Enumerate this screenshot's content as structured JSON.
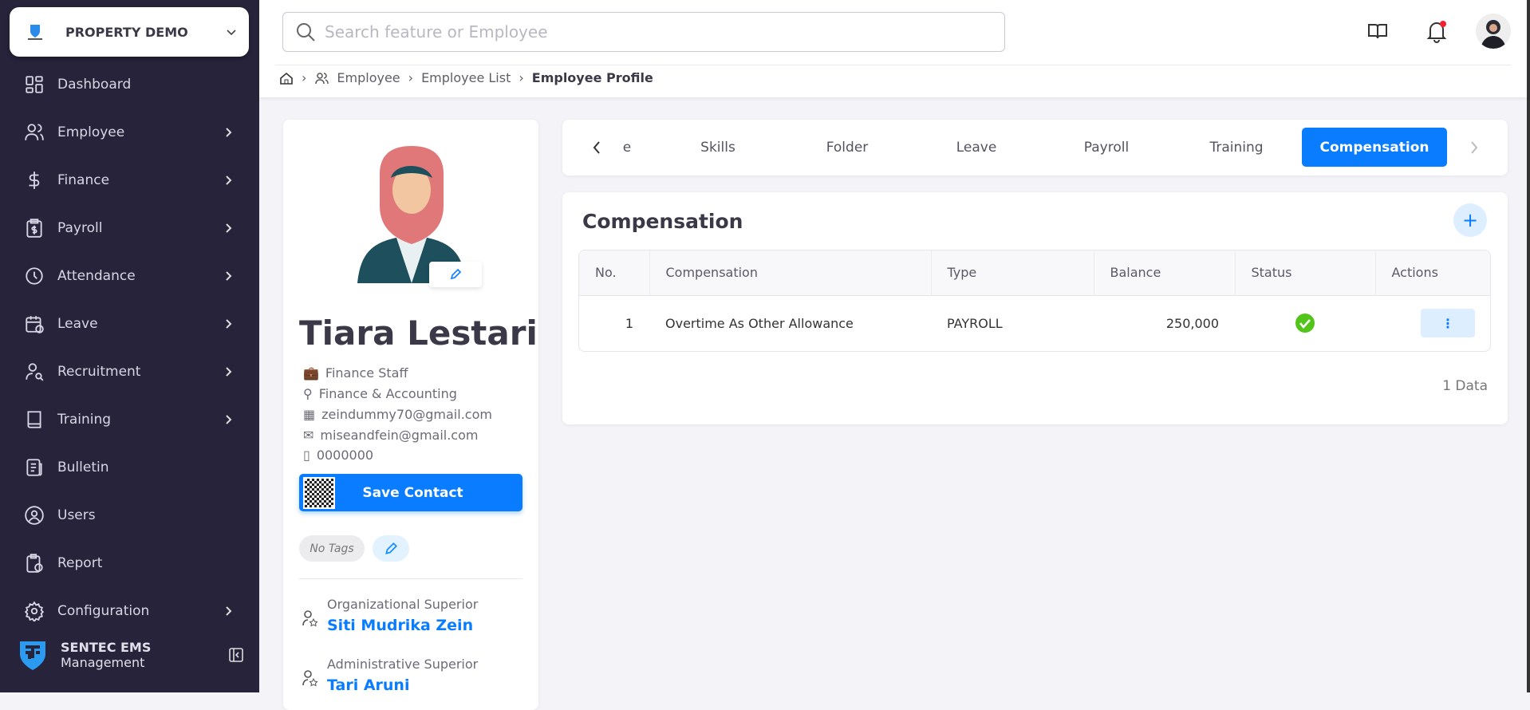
{
  "company": {
    "name": "PROPERTY DEMO"
  },
  "sidebar": {
    "items": [
      {
        "label": "Dashboard",
        "icon": "dashboard-icon",
        "arrow": false
      },
      {
        "label": "Employee",
        "icon": "users-icon",
        "arrow": true
      },
      {
        "label": "Finance",
        "icon": "dollar-icon",
        "arrow": true
      },
      {
        "label": "Payroll",
        "icon": "clipboard-dollar-icon",
        "arrow": true
      },
      {
        "label": "Attendance",
        "icon": "clock-icon",
        "arrow": true
      },
      {
        "label": "Leave",
        "icon": "calendar-icon",
        "arrow": true
      },
      {
        "label": "Recruitment",
        "icon": "user-search-icon",
        "arrow": true
      },
      {
        "label": "Training",
        "icon": "book-icon",
        "arrow": true
      },
      {
        "label": "Bulletin",
        "icon": "news-icon",
        "arrow": false
      },
      {
        "label": "Users",
        "icon": "user-circle-icon",
        "arrow": false
      },
      {
        "label": "Report",
        "icon": "report-icon",
        "arrow": false
      },
      {
        "label": "Configuration",
        "icon": "gear-icon",
        "arrow": true
      }
    ],
    "footer": {
      "name": "SENTEC EMS",
      "subtitle": "Management"
    }
  },
  "header": {
    "search_placeholder": "Search feature or Employee"
  },
  "breadcrumb": [
    "Employee",
    "Employee List",
    "Employee Profile"
  ],
  "profile": {
    "name": "Tiara Lestari",
    "position": "Finance Staff",
    "department": "Finance & Accounting",
    "office_email": "zeindummy70@gmail.com",
    "email": "miseandfein@gmail.com",
    "phone": "0000000",
    "save_contact": "Save Contact",
    "tags": "No Tags",
    "org_superior_label": "Organizational Superior",
    "org_superior": "Siti Mudrika Zein",
    "admin_superior_label": "Administrative Superior",
    "admin_superior": "Tari Aruni"
  },
  "tabs": [
    "e",
    "Skills",
    "Folder",
    "Leave",
    "Payroll",
    "Training",
    "Compensation"
  ],
  "active_tab": "Compensation",
  "compensation": {
    "title": "Compensation",
    "columns": [
      "No.",
      "Compensation",
      "Type",
      "Balance",
      "Status",
      "Actions"
    ],
    "rows": [
      {
        "no": "1",
        "name": "Overtime As Other Allowance",
        "type": "PAYROLL",
        "balance": "250,000",
        "status": "active"
      }
    ],
    "count": "1 Data"
  },
  "colors": {
    "sidebar": "#27233b",
    "accent": "#0a7cff",
    "status_ok": "#52c41a"
  }
}
